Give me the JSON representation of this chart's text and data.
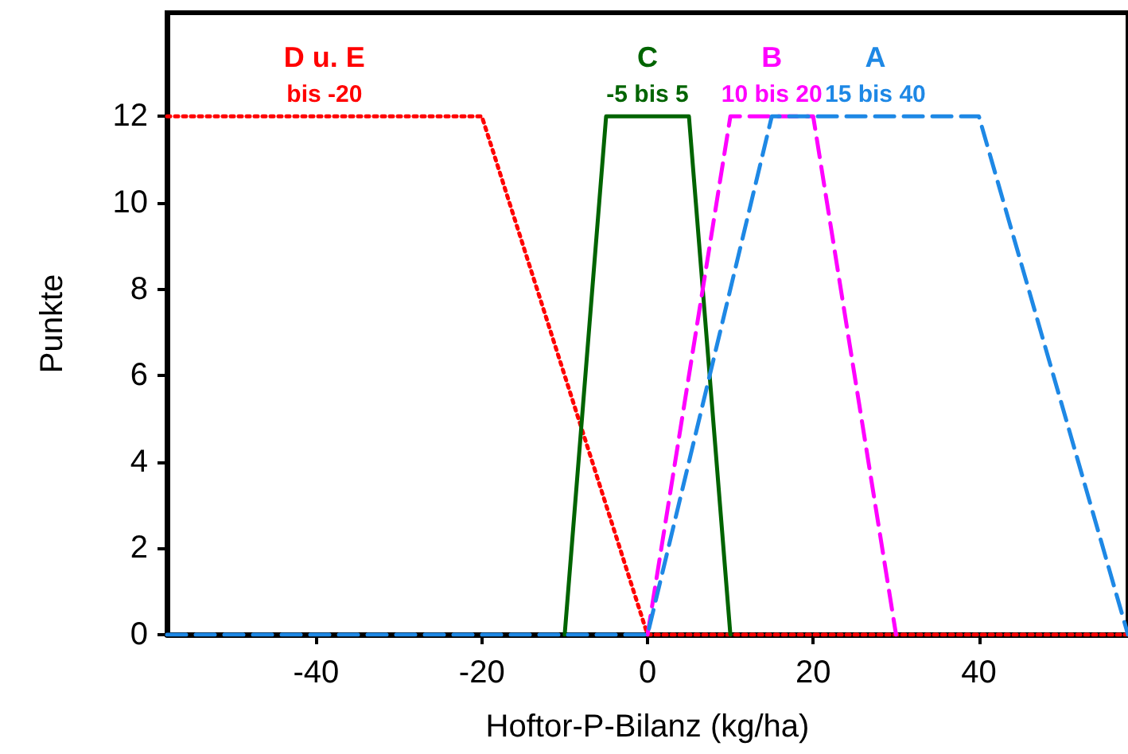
{
  "chart_data": {
    "type": "line",
    "xlabel": "Hoftor-P-Bilanz (kg/ha)",
    "ylabel": "Punkte",
    "xlim": [
      -58,
      58
    ],
    "ylim": [
      0,
      14.4
    ],
    "xticks": [
      -40,
      -20,
      0,
      20,
      40
    ],
    "yticks": [
      0,
      2,
      4,
      6,
      8,
      10,
      12
    ],
    "grid": false,
    "marker": "none",
    "series": [
      {
        "name": "D u. E",
        "x": [
          -58,
          -20,
          0,
          58
        ],
        "values": [
          12,
          12,
          0,
          0
        ],
        "color": "#ff0000",
        "line_style": "dotted"
      },
      {
        "name": "C",
        "x": [
          -10,
          -5,
          5,
          10
        ],
        "values": [
          0,
          12,
          12,
          0
        ],
        "color": "#006400",
        "line_style": "solid"
      },
      {
        "name": "B",
        "x": [
          0,
          10,
          20,
          30
        ],
        "values": [
          0,
          12,
          12,
          0
        ],
        "color": "#ff00ff",
        "line_style": "dashed"
      },
      {
        "name": "A",
        "x": [
          -58,
          0,
          15,
          40,
          58
        ],
        "values": [
          0,
          0,
          12,
          12,
          0
        ],
        "color": "#1e88e5",
        "line_style": "dashed"
      }
    ],
    "legend": false,
    "annotations": [
      "bis -20",
      "-5 bis 5",
      "10 bis 20",
      "15 bis 40"
    ]
  }
}
